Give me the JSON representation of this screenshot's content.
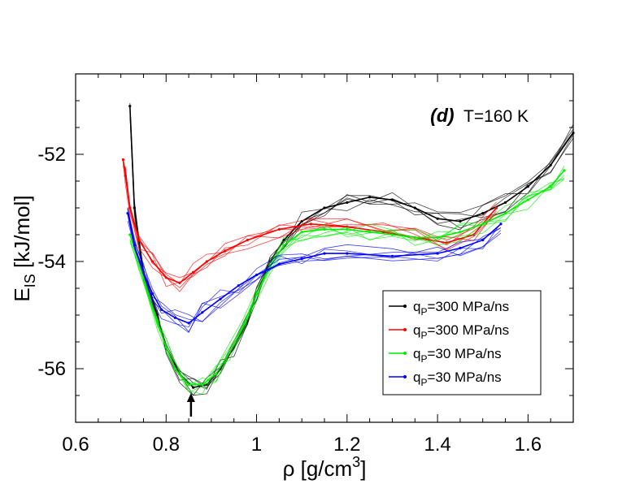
{
  "chart_data": {
    "type": "line",
    "title": "",
    "annotation": {
      "label": "(d)",
      "text": "T=160 K"
    },
    "xlabel": {
      "main": "ρ [g/cm",
      "sup": "3",
      "close": "]"
    },
    "ylabel": {
      "main": "E",
      "sub": "IS",
      "rest": " [kJ/mol]"
    },
    "xlim": [
      0.6,
      1.7
    ],
    "ylim": [
      -57,
      -50.5
    ],
    "xticks": [
      0.6,
      0.8,
      1,
      1.2,
      1.4,
      1.6
    ],
    "xtick_labels": [
      "0.6",
      "0.8",
      "1",
      "1.2",
      "1.4",
      "1.6"
    ],
    "yticks": [
      -56,
      -54,
      -52
    ],
    "ytick_labels": [
      "-56",
      "-54",
      "-52"
    ],
    "arrow_x": 0.855,
    "series": [
      {
        "name": "q_P=300 MPa/ns (black)",
        "legend": {
          "q": "q",
          "sub": "P",
          "rest": "=300 MPa/ns"
        },
        "color": "#000000",
        "points": [
          [
            0.72,
            -51.1
          ],
          [
            0.73,
            -53.0
          ],
          [
            0.75,
            -54.2
          ],
          [
            0.78,
            -55.0
          ],
          [
            0.8,
            -55.6
          ],
          [
            0.83,
            -56.1
          ],
          [
            0.86,
            -56.35
          ],
          [
            0.89,
            -56.3
          ],
          [
            0.92,
            -56.0
          ],
          [
            0.95,
            -55.6
          ],
          [
            0.98,
            -55.1
          ],
          [
            1.0,
            -54.6
          ],
          [
            1.03,
            -54.0
          ],
          [
            1.06,
            -53.6
          ],
          [
            1.1,
            -53.25
          ],
          [
            1.15,
            -53.0
          ],
          [
            1.2,
            -52.9
          ],
          [
            1.25,
            -52.8
          ],
          [
            1.3,
            -52.85
          ],
          [
            1.35,
            -53.0
          ],
          [
            1.4,
            -53.2
          ],
          [
            1.45,
            -53.25
          ],
          [
            1.5,
            -53.1
          ],
          [
            1.55,
            -52.9
          ],
          [
            1.6,
            -52.6
          ],
          [
            1.65,
            -52.2
          ],
          [
            1.7,
            -51.6
          ]
        ]
      },
      {
        "name": "q_P=300 MPa/ns (red)",
        "legend": {
          "q": "q",
          "sub": "P",
          "rest": "=300 MPa/ns"
        },
        "color": "#ff0000",
        "points": [
          [
            0.705,
            -52.1
          ],
          [
            0.71,
            -52.4
          ],
          [
            0.72,
            -53.0
          ],
          [
            0.74,
            -53.6
          ],
          [
            0.77,
            -54.0
          ],
          [
            0.8,
            -54.3
          ],
          [
            0.83,
            -54.4
          ],
          [
            0.86,
            -54.2
          ],
          [
            0.89,
            -54.0
          ],
          [
            0.93,
            -53.8
          ],
          [
            0.98,
            -53.6
          ],
          [
            1.05,
            -53.4
          ],
          [
            1.12,
            -53.3
          ],
          [
            1.2,
            -53.35
          ],
          [
            1.28,
            -53.45
          ],
          [
            1.35,
            -53.55
          ],
          [
            1.42,
            -53.65
          ],
          [
            1.48,
            -53.5
          ],
          [
            1.53,
            -53.0
          ]
        ]
      },
      {
        "name": "q_P=30 MPa/ns (green)",
        "legend": {
          "q": "q",
          "sub": "P",
          "rest": "=30 MPa/ns"
        },
        "color": "#00ee00",
        "points": [
          [
            0.72,
            -53.5
          ],
          [
            0.74,
            -54.0
          ],
          [
            0.76,
            -54.6
          ],
          [
            0.78,
            -55.1
          ],
          [
            0.8,
            -55.6
          ],
          [
            0.82,
            -56.0
          ],
          [
            0.85,
            -56.3
          ],
          [
            0.88,
            -56.3
          ],
          [
            0.91,
            -56.1
          ],
          [
            0.94,
            -55.7
          ],
          [
            0.97,
            -55.2
          ],
          [
            1.0,
            -54.6
          ],
          [
            1.03,
            -54.1
          ],
          [
            1.06,
            -53.7
          ],
          [
            1.1,
            -53.45
          ],
          [
            1.15,
            -53.4
          ],
          [
            1.2,
            -53.4
          ],
          [
            1.25,
            -53.45
          ],
          [
            1.3,
            -53.5
          ],
          [
            1.35,
            -53.55
          ],
          [
            1.4,
            -53.55
          ],
          [
            1.45,
            -53.45
          ],
          [
            1.5,
            -53.3
          ],
          [
            1.55,
            -53.1
          ],
          [
            1.6,
            -52.85
          ],
          [
            1.65,
            -52.6
          ],
          [
            1.68,
            -52.3
          ]
        ]
      },
      {
        "name": "q_P=30 MPa/ns (blue)",
        "legend": {
          "q": "q",
          "sub": "P",
          "rest": "=30 MPa/ns"
        },
        "color": "#0000ff",
        "points": [
          [
            0.715,
            -53.1
          ],
          [
            0.73,
            -53.7
          ],
          [
            0.75,
            -54.2
          ],
          [
            0.77,
            -54.6
          ],
          [
            0.79,
            -54.9
          ],
          [
            0.82,
            -55.05
          ],
          [
            0.85,
            -55.15
          ],
          [
            0.88,
            -54.95
          ],
          [
            0.92,
            -54.7
          ],
          [
            0.96,
            -54.45
          ],
          [
            1.0,
            -54.25
          ],
          [
            1.05,
            -54.05
          ],
          [
            1.1,
            -53.95
          ],
          [
            1.15,
            -53.85
          ],
          [
            1.2,
            -53.85
          ],
          [
            1.3,
            -53.9
          ],
          [
            1.4,
            -53.85
          ],
          [
            1.45,
            -53.75
          ],
          [
            1.5,
            -53.6
          ],
          [
            1.54,
            -53.3
          ]
        ]
      }
    ]
  }
}
